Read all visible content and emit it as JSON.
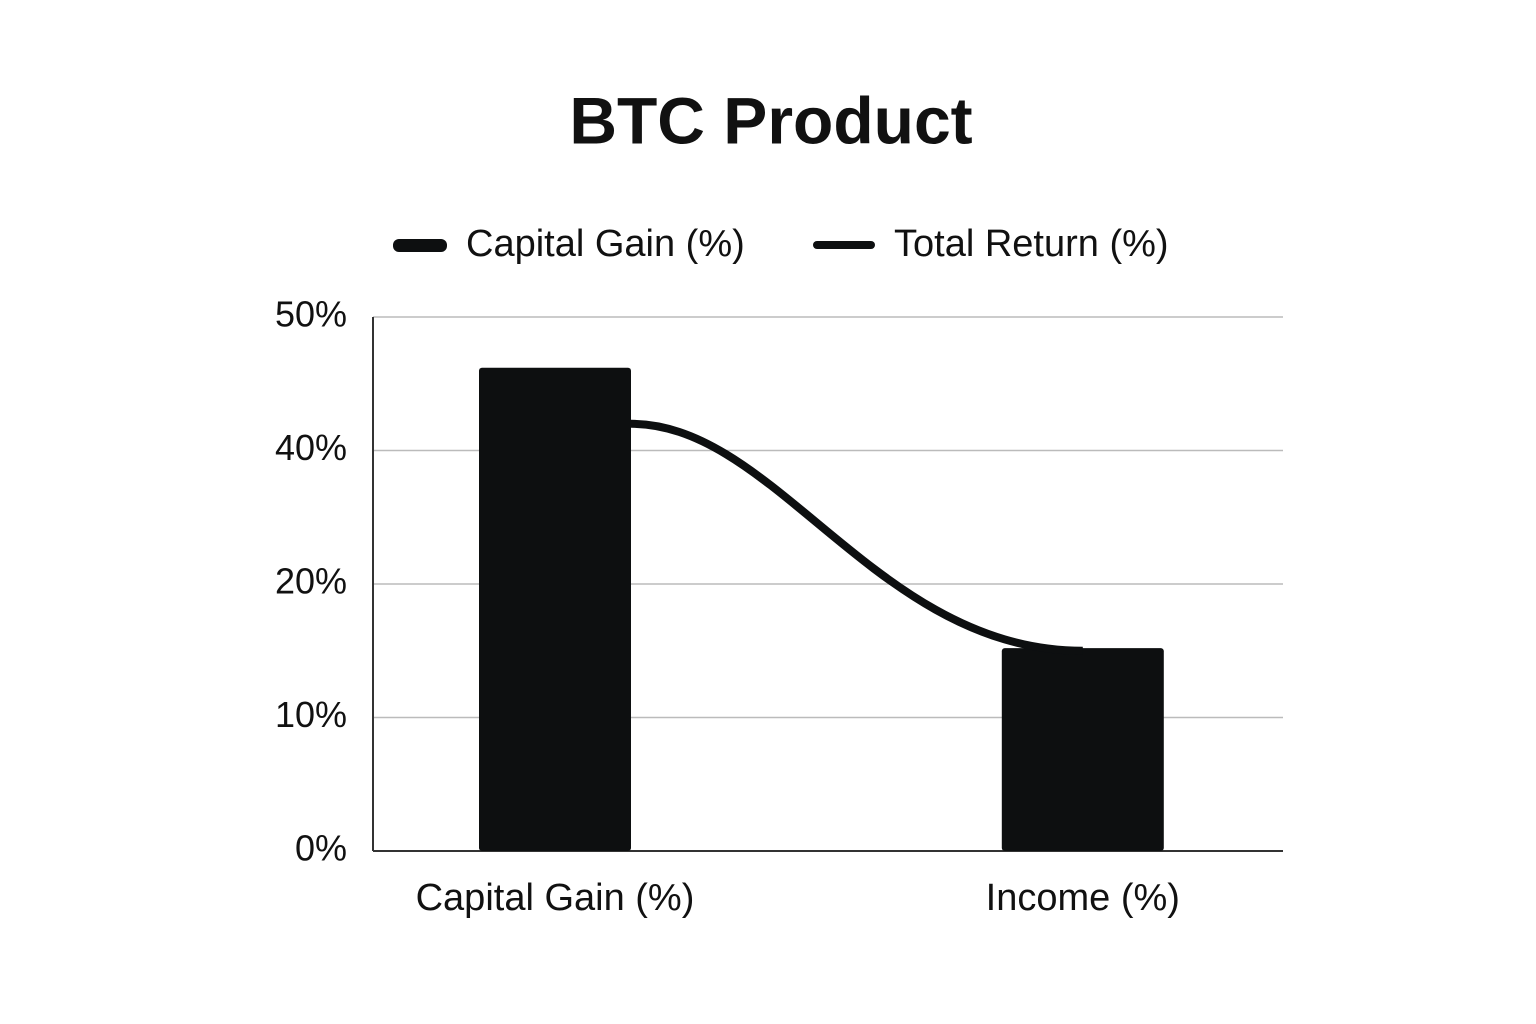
{
  "chart_data": {
    "type": "bar-line",
    "title": "BTC Product",
    "categories": [
      "Capital Gain (%)",
      "Income (%)"
    ],
    "series": [
      {
        "name": "Capital Gain (%)",
        "type": "bar",
        "color": "#0d0f10",
        "values": [
          46.2,
          15.2
        ]
      },
      {
        "name": "Total Return (%)",
        "type": "line",
        "color": "#0d0f10",
        "values": [
          42,
          15
        ]
      }
    ],
    "ylim": [
      0,
      50
    ],
    "yticks": [
      {
        "value": 0,
        "label": "0%"
      },
      {
        "value": 10,
        "label": "10%"
      },
      {
        "value": 20,
        "label": "20%"
      },
      {
        "value": 40,
        "label": "40%"
      },
      {
        "value": 50,
        "label": "50%"
      }
    ],
    "grid": true,
    "legend": "top"
  }
}
